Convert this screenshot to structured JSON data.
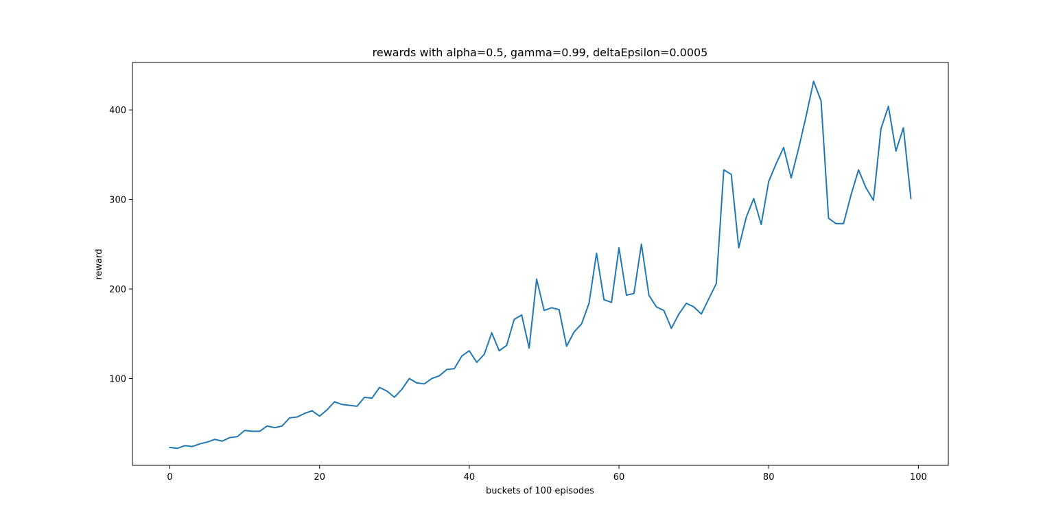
{
  "chart_data": {
    "type": "line",
    "title": "rewards with alpha=0.5, gamma=0.99, deltaEpsilon=0.0005",
    "xlabel": "buckets of 100 episodes",
    "ylabel": "reward",
    "xlim": [
      -5,
      104
    ],
    "ylim": [
      3,
      453
    ],
    "xticks": [
      0,
      20,
      40,
      60,
      80,
      100
    ],
    "yticks": [
      100,
      200,
      300,
      400
    ],
    "grid": false,
    "colors": {
      "line": "#1f77b4"
    },
    "series": [
      {
        "x": [
          0,
          1,
          2,
          3,
          4,
          5,
          6,
          7,
          8,
          9,
          10,
          11,
          12,
          13,
          14,
          15,
          16,
          17,
          18,
          19,
          20,
          21,
          22,
          23,
          24,
          25,
          26,
          27,
          28,
          29,
          30,
          31,
          32,
          33,
          34,
          35,
          36,
          37,
          38,
          39,
          40,
          41,
          42,
          43,
          44,
          45,
          46,
          47,
          48,
          49,
          50,
          51,
          52,
          53,
          54,
          55,
          56,
          57,
          58,
          59,
          60,
          61,
          62,
          63,
          64,
          65,
          66,
          67,
          68,
          69,
          70,
          71,
          72,
          73,
          74,
          75,
          76,
          77,
          78,
          79,
          80,
          81,
          82,
          83,
          84,
          85,
          86,
          87,
          88,
          89,
          90,
          91,
          92,
          93,
          94,
          95,
          96,
          97,
          98,
          99
        ],
        "values": [
          23,
          22,
          25,
          24,
          27,
          29,
          32,
          30,
          34,
          35,
          42,
          41,
          41,
          47,
          45,
          47,
          56,
          57,
          61,
          64,
          58,
          65,
          74,
          71,
          70,
          69,
          79,
          78,
          90,
          86,
          79,
          88,
          100,
          95,
          94,
          100,
          103,
          110,
          111,
          125,
          131,
          118,
          127,
          151,
          131,
          137,
          166,
          171,
          134,
          211,
          176,
          179,
          177,
          136,
          152,
          161,
          184,
          240,
          188,
          185,
          246,
          193,
          195,
          250,
          193,
          180,
          176,
          156,
          172,
          184,
          180,
          172,
          189,
          206,
          333,
          328,
          246,
          280,
          301,
          272,
          320,
          340,
          358,
          324,
          357,
          393,
          432,
          410,
          279,
          273,
          273,
          305,
          333,
          313,
          299,
          379,
          404,
          354,
          380,
          301
        ]
      }
    ]
  }
}
